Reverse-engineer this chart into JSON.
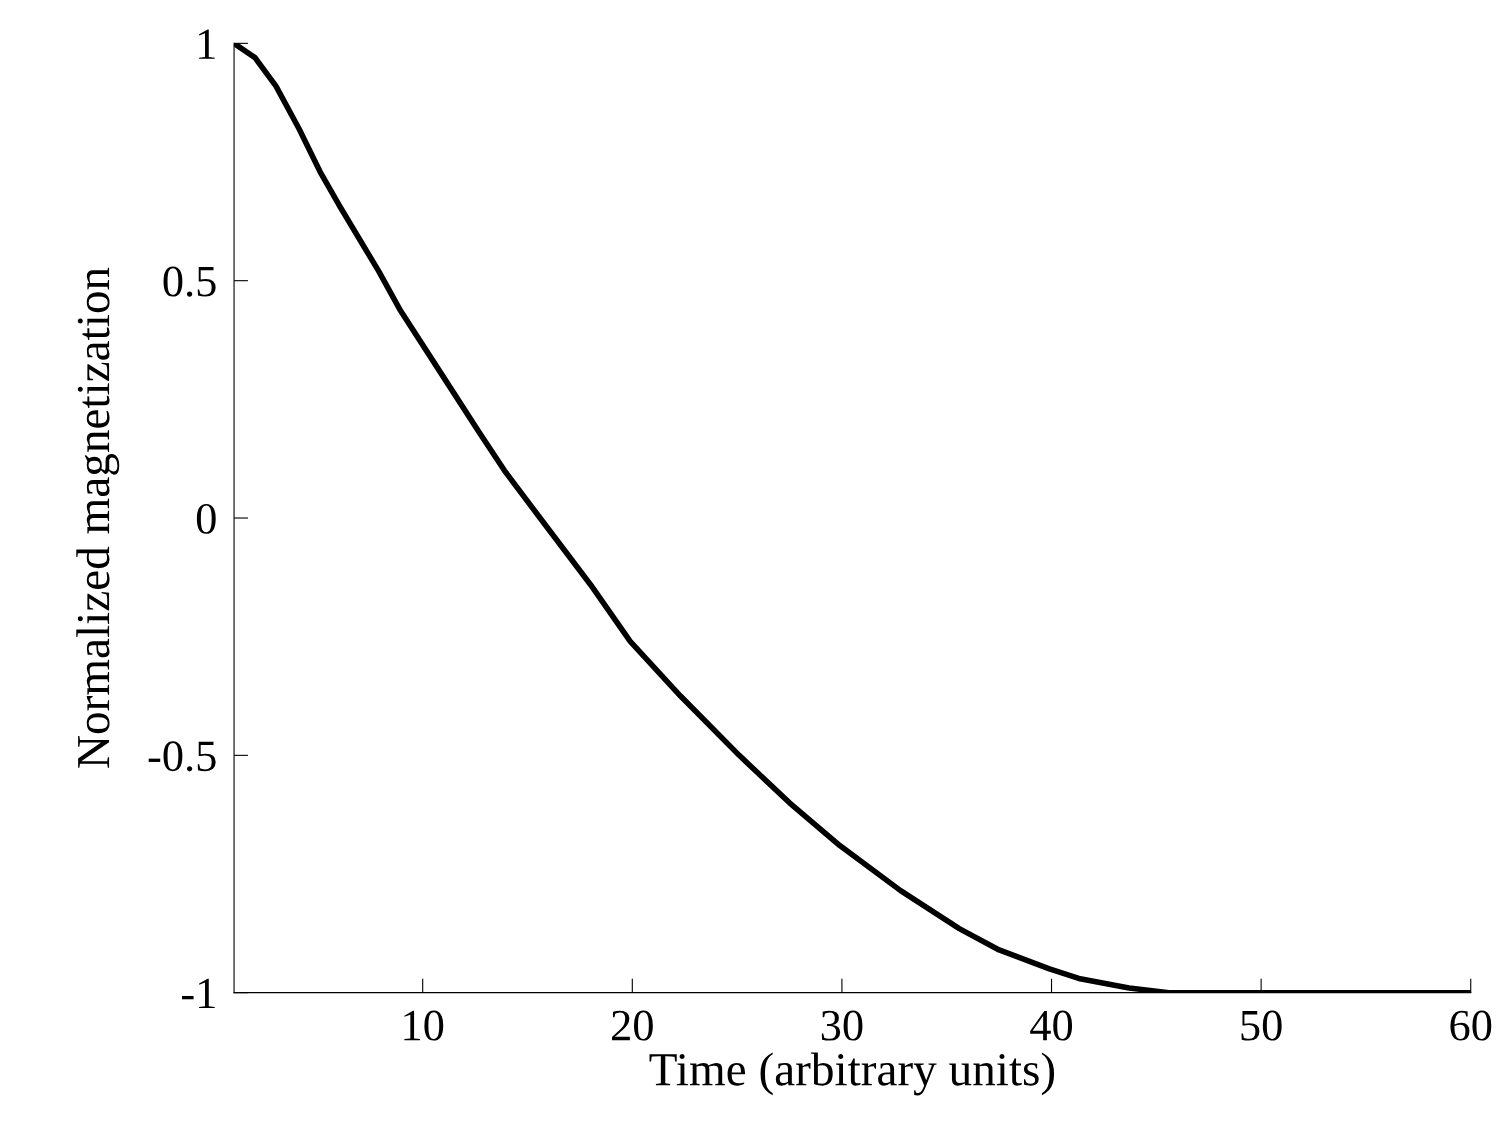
{
  "chart_data": {
    "type": "line",
    "xlabel": "Time (arbitrary units)",
    "ylabel": "Normalized magnetization",
    "x": [
      1,
      2,
      3,
      4.1,
      5.1,
      6,
      7.9,
      8.9,
      10.8,
      12.7,
      13.9,
      15.6,
      18,
      19.9,
      22.3,
      25.1,
      27.5,
      29.9,
      32.8,
      35.6,
      37.5,
      39.9,
      41.3,
      43.7,
      45.6,
      60
    ],
    "series": [
      {
        "color": "#000000",
        "values": [
          1,
          0.97,
          0.91,
          0.82,
          0.73,
          0.66,
          0.52,
          0.44,
          0.31,
          0.18,
          0.1,
          0.0,
          -0.14,
          -0.26,
          -0.375,
          -0.5,
          -0.6,
          -0.69,
          -0.785,
          -0.865,
          -0.91,
          -0.95,
          -0.97,
          -0.99,
          -1.0,
          -1.0
        ]
      }
    ],
    "xlim": [
      1,
      60
    ],
    "ylim": [
      -1,
      1
    ],
    "xticks": [
      10,
      20,
      30,
      40,
      50,
      60
    ],
    "yticks": [
      {
        "value": -1,
        "label": "-1"
      },
      {
        "value": -0.5,
        "label": "-0.5"
      },
      0,
      0.5,
      1
    ],
    "marker": "none",
    "line_style": "solid"
  }
}
